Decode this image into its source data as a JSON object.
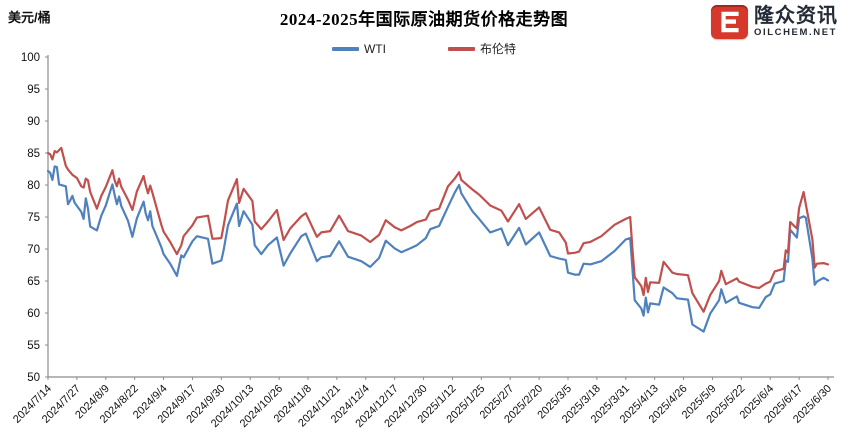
{
  "logo": {
    "name_cn": "隆众资讯",
    "site": "OILCHEM.NET",
    "icon_color": "#d6392b"
  },
  "chart_data": {
    "type": "line",
    "title": "2024-2025年国际原油期货价格走势图",
    "ylabel": "美元/桶",
    "ylim": [
      50,
      100
    ],
    "ytick_step": 5,
    "grid": false,
    "legend_position": "top-center",
    "axis_color": "#8c8c8c",
    "x_total_days": 351,
    "x_tick_interval_days": 13,
    "x_tick_labels": [
      "2024/7/14",
      "2024/7/27",
      "2024/8/9",
      "2024/8/22",
      "2024/9/4",
      "2024/9/17",
      "2024/9/30",
      "2024/10/13",
      "2024/10/26",
      "2024/11/8",
      "2024/11/21",
      "2024/12/4",
      "2024/12/17",
      "2024/12/30",
      "2025/1/12",
      "2025/1/25",
      "2025/2/7",
      "2025/2/20",
      "2025/3/5",
      "2025/3/18",
      "2025/3/31",
      "2025/4/13",
      "2025/4/26",
      "2025/5/9",
      "2025/5/22",
      "2025/6/4",
      "2025/6/17",
      "2025/6/30"
    ],
    "series": [
      {
        "name": "WTI",
        "color": "#4F81BD",
        "points": [
          [
            0,
            82.2
          ],
          [
            1,
            81.9
          ],
          [
            2,
            80.8
          ],
          [
            3,
            82.9
          ],
          [
            4,
            82.8
          ],
          [
            5,
            80.1
          ],
          [
            8,
            79.8
          ],
          [
            9,
            77.0
          ],
          [
            10,
            77.6
          ],
          [
            11,
            78.3
          ],
          [
            12,
            77.2
          ],
          [
            15,
            75.8
          ],
          [
            16,
            74.7
          ],
          [
            17,
            77.9
          ],
          [
            18,
            76.3
          ],
          [
            19,
            73.5
          ],
          [
            22,
            72.9
          ],
          [
            24,
            75.2
          ],
          [
            26,
            76.8
          ],
          [
            29,
            80.1
          ],
          [
            30,
            78.4
          ],
          [
            31,
            77.0
          ],
          [
            32,
            78.2
          ],
          [
            33,
            76.7
          ],
          [
            36,
            74.4
          ],
          [
            38,
            71.9
          ],
          [
            40,
            74.8
          ],
          [
            43,
            77.4
          ],
          [
            44,
            75.5
          ],
          [
            45,
            74.5
          ],
          [
            46,
            75.9
          ],
          [
            47,
            73.6
          ],
          [
            51,
            70.3
          ],
          [
            52,
            69.2
          ],
          [
            55,
            67.7
          ],
          [
            58,
            65.8
          ],
          [
            60,
            69.0
          ],
          [
            61,
            68.7
          ],
          [
            65,
            71.2
          ],
          [
            67,
            72.0
          ],
          [
            72,
            71.6
          ],
          [
            74,
            67.7
          ],
          [
            78,
            68.2
          ],
          [
            79,
            69.8
          ],
          [
            81,
            73.7
          ],
          [
            85,
            77.1
          ],
          [
            86,
            73.6
          ],
          [
            88,
            75.9
          ],
          [
            92,
            73.8
          ],
          [
            93,
            70.6
          ],
          [
            96,
            69.2
          ],
          [
            99,
            70.6
          ],
          [
            103,
            71.8
          ],
          [
            106,
            67.4
          ],
          [
            109,
            69.3
          ],
          [
            114,
            72.0
          ],
          [
            116,
            72.4
          ],
          [
            121,
            68.1
          ],
          [
            123,
            68.7
          ],
          [
            127,
            68.9
          ],
          [
            131,
            71.2
          ],
          [
            135,
            68.8
          ],
          [
            141,
            68.1
          ],
          [
            145,
            67.2
          ],
          [
            149,
            68.6
          ],
          [
            152,
            71.3
          ],
          [
            156,
            70.1
          ],
          [
            159,
            69.5
          ],
          [
            163,
            70.1
          ],
          [
            166,
            70.6
          ],
          [
            170,
            71.7
          ],
          [
            172,
            73.1
          ],
          [
            176,
            73.6
          ],
          [
            180,
            76.6
          ],
          [
            183,
            78.8
          ],
          [
            185,
            80.0
          ],
          [
            186,
            78.7
          ],
          [
            191,
            75.9
          ],
          [
            194,
            74.7
          ],
          [
            199,
            72.6
          ],
          [
            204,
            73.2
          ],
          [
            207,
            70.6
          ],
          [
            212,
            73.3
          ],
          [
            215,
            70.7
          ],
          [
            221,
            72.6
          ],
          [
            226,
            68.9
          ],
          [
            230,
            68.5
          ],
          [
            233,
            68.3
          ],
          [
            234,
            66.3
          ],
          [
            237,
            66.0
          ],
          [
            239,
            66.0
          ],
          [
            241,
            67.7
          ],
          [
            244,
            67.6
          ],
          [
            249,
            68.1
          ],
          [
            255,
            69.7
          ],
          [
            260,
            71.5
          ],
          [
            262,
            71.7
          ],
          [
            263,
            67.0
          ],
          [
            264,
            62.0
          ],
          [
            267,
            60.7
          ],
          [
            268,
            59.6
          ],
          [
            269,
            62.4
          ],
          [
            270,
            60.1
          ],
          [
            271,
            61.5
          ],
          [
            275,
            61.3
          ],
          [
            277,
            64.0
          ],
          [
            281,
            63.1
          ],
          [
            283,
            62.3
          ],
          [
            288,
            62.1
          ],
          [
            290,
            58.2
          ],
          [
            295,
            57.1
          ],
          [
            298,
            59.9
          ],
          [
            302,
            62.0
          ],
          [
            303,
            63.7
          ],
          [
            305,
            61.6
          ],
          [
            310,
            62.6
          ],
          [
            311,
            61.6
          ],
          [
            317,
            60.9
          ],
          [
            320,
            60.8
          ],
          [
            323,
            62.5
          ],
          [
            325,
            62.9
          ],
          [
            327,
            64.6
          ],
          [
            331,
            65.0
          ],
          [
            332,
            68.2
          ],
          [
            333,
            68.0
          ],
          [
            334,
            73.0
          ],
          [
            337,
            71.8
          ],
          [
            338,
            74.8
          ],
          [
            340,
            75.1
          ],
          [
            341,
            74.9
          ],
          [
            344,
            68.5
          ],
          [
            345,
            64.4
          ],
          [
            346,
            64.9
          ],
          [
            349,
            65.5
          ],
          [
            351,
            65.1
          ]
        ]
      },
      {
        "name": "布伦特",
        "color": "#C0504D",
        "points": [
          [
            0,
            85.0
          ],
          [
            1,
            84.8
          ],
          [
            2,
            84.0
          ],
          [
            3,
            85.3
          ],
          [
            4,
            85.1
          ],
          [
            6,
            85.8
          ],
          [
            8,
            83.0
          ],
          [
            9,
            82.4
          ],
          [
            11,
            81.6
          ],
          [
            13,
            81.1
          ],
          [
            15,
            79.8
          ],
          [
            16,
            79.6
          ],
          [
            17,
            81.0
          ],
          [
            18,
            80.7
          ],
          [
            19,
            78.9
          ],
          [
            22,
            76.3
          ],
          [
            24,
            78.3
          ],
          [
            26,
            79.7
          ],
          [
            29,
            82.3
          ],
          [
            30,
            80.7
          ],
          [
            31,
            79.8
          ],
          [
            32,
            81.0
          ],
          [
            33,
            79.7
          ],
          [
            36,
            77.7
          ],
          [
            38,
            76.1
          ],
          [
            40,
            79.0
          ],
          [
            43,
            81.4
          ],
          [
            44,
            79.9
          ],
          [
            45,
            78.7
          ],
          [
            46,
            79.9
          ],
          [
            47,
            78.8
          ],
          [
            51,
            73.8
          ],
          [
            52,
            72.7
          ],
          [
            55,
            71.1
          ],
          [
            58,
            69.2
          ],
          [
            60,
            70.6
          ],
          [
            61,
            72.0
          ],
          [
            65,
            73.7
          ],
          [
            67,
            74.9
          ],
          [
            72,
            75.2
          ],
          [
            74,
            71.6
          ],
          [
            78,
            71.7
          ],
          [
            79,
            73.6
          ],
          [
            81,
            77.6
          ],
          [
            85,
            80.9
          ],
          [
            86,
            77.2
          ],
          [
            88,
            79.4
          ],
          [
            92,
            77.5
          ],
          [
            93,
            74.3
          ],
          [
            96,
            73.1
          ],
          [
            99,
            74.3
          ],
          [
            103,
            76.1
          ],
          [
            106,
            71.4
          ],
          [
            109,
            73.2
          ],
          [
            114,
            75.1
          ],
          [
            116,
            75.6
          ],
          [
            121,
            71.9
          ],
          [
            123,
            72.6
          ],
          [
            127,
            72.8
          ],
          [
            131,
            75.2
          ],
          [
            135,
            72.8
          ],
          [
            141,
            72.1
          ],
          [
            145,
            71.1
          ],
          [
            149,
            72.2
          ],
          [
            152,
            74.5
          ],
          [
            156,
            73.4
          ],
          [
            159,
            72.9
          ],
          [
            163,
            73.6
          ],
          [
            166,
            74.2
          ],
          [
            170,
            74.6
          ],
          [
            172,
            75.9
          ],
          [
            176,
            76.3
          ],
          [
            180,
            79.8
          ],
          [
            183,
            81.0
          ],
          [
            185,
            82.0
          ],
          [
            186,
            80.8
          ],
          [
            191,
            79.3
          ],
          [
            194,
            78.5
          ],
          [
            199,
            76.8
          ],
          [
            204,
            76.0
          ],
          [
            207,
            74.3
          ],
          [
            212,
            77.0
          ],
          [
            215,
            74.7
          ],
          [
            221,
            76.5
          ],
          [
            226,
            73.0
          ],
          [
            230,
            72.6
          ],
          [
            233,
            71.0
          ],
          [
            234,
            69.3
          ],
          [
            237,
            69.4
          ],
          [
            239,
            69.6
          ],
          [
            241,
            70.9
          ],
          [
            244,
            71.1
          ],
          [
            249,
            72.0
          ],
          [
            255,
            73.8
          ],
          [
            260,
            74.7
          ],
          [
            262,
            75.0
          ],
          [
            263,
            70.1
          ],
          [
            264,
            65.6
          ],
          [
            267,
            64.2
          ],
          [
            268,
            62.8
          ],
          [
            269,
            65.5
          ],
          [
            270,
            63.3
          ],
          [
            271,
            64.8
          ],
          [
            275,
            64.7
          ],
          [
            277,
            68.0
          ],
          [
            281,
            66.3
          ],
          [
            283,
            66.1
          ],
          [
            288,
            65.9
          ],
          [
            290,
            63.1
          ],
          [
            295,
            60.2
          ],
          [
            298,
            62.8
          ],
          [
            302,
            65.0
          ],
          [
            303,
            66.6
          ],
          [
            305,
            64.5
          ],
          [
            310,
            65.4
          ],
          [
            311,
            64.9
          ],
          [
            317,
            64.1
          ],
          [
            320,
            63.9
          ],
          [
            323,
            64.6
          ],
          [
            325,
            64.9
          ],
          [
            327,
            66.5
          ],
          [
            331,
            66.9
          ],
          [
            332,
            69.8
          ],
          [
            333,
            69.4
          ],
          [
            334,
            74.2
          ],
          [
            337,
            73.2
          ],
          [
            338,
            76.4
          ],
          [
            340,
            78.9
          ],
          [
            341,
            77.0
          ],
          [
            344,
            71.5
          ],
          [
            345,
            67.1
          ],
          [
            346,
            67.7
          ],
          [
            349,
            67.8
          ],
          [
            351,
            67.6
          ]
        ]
      }
    ]
  }
}
